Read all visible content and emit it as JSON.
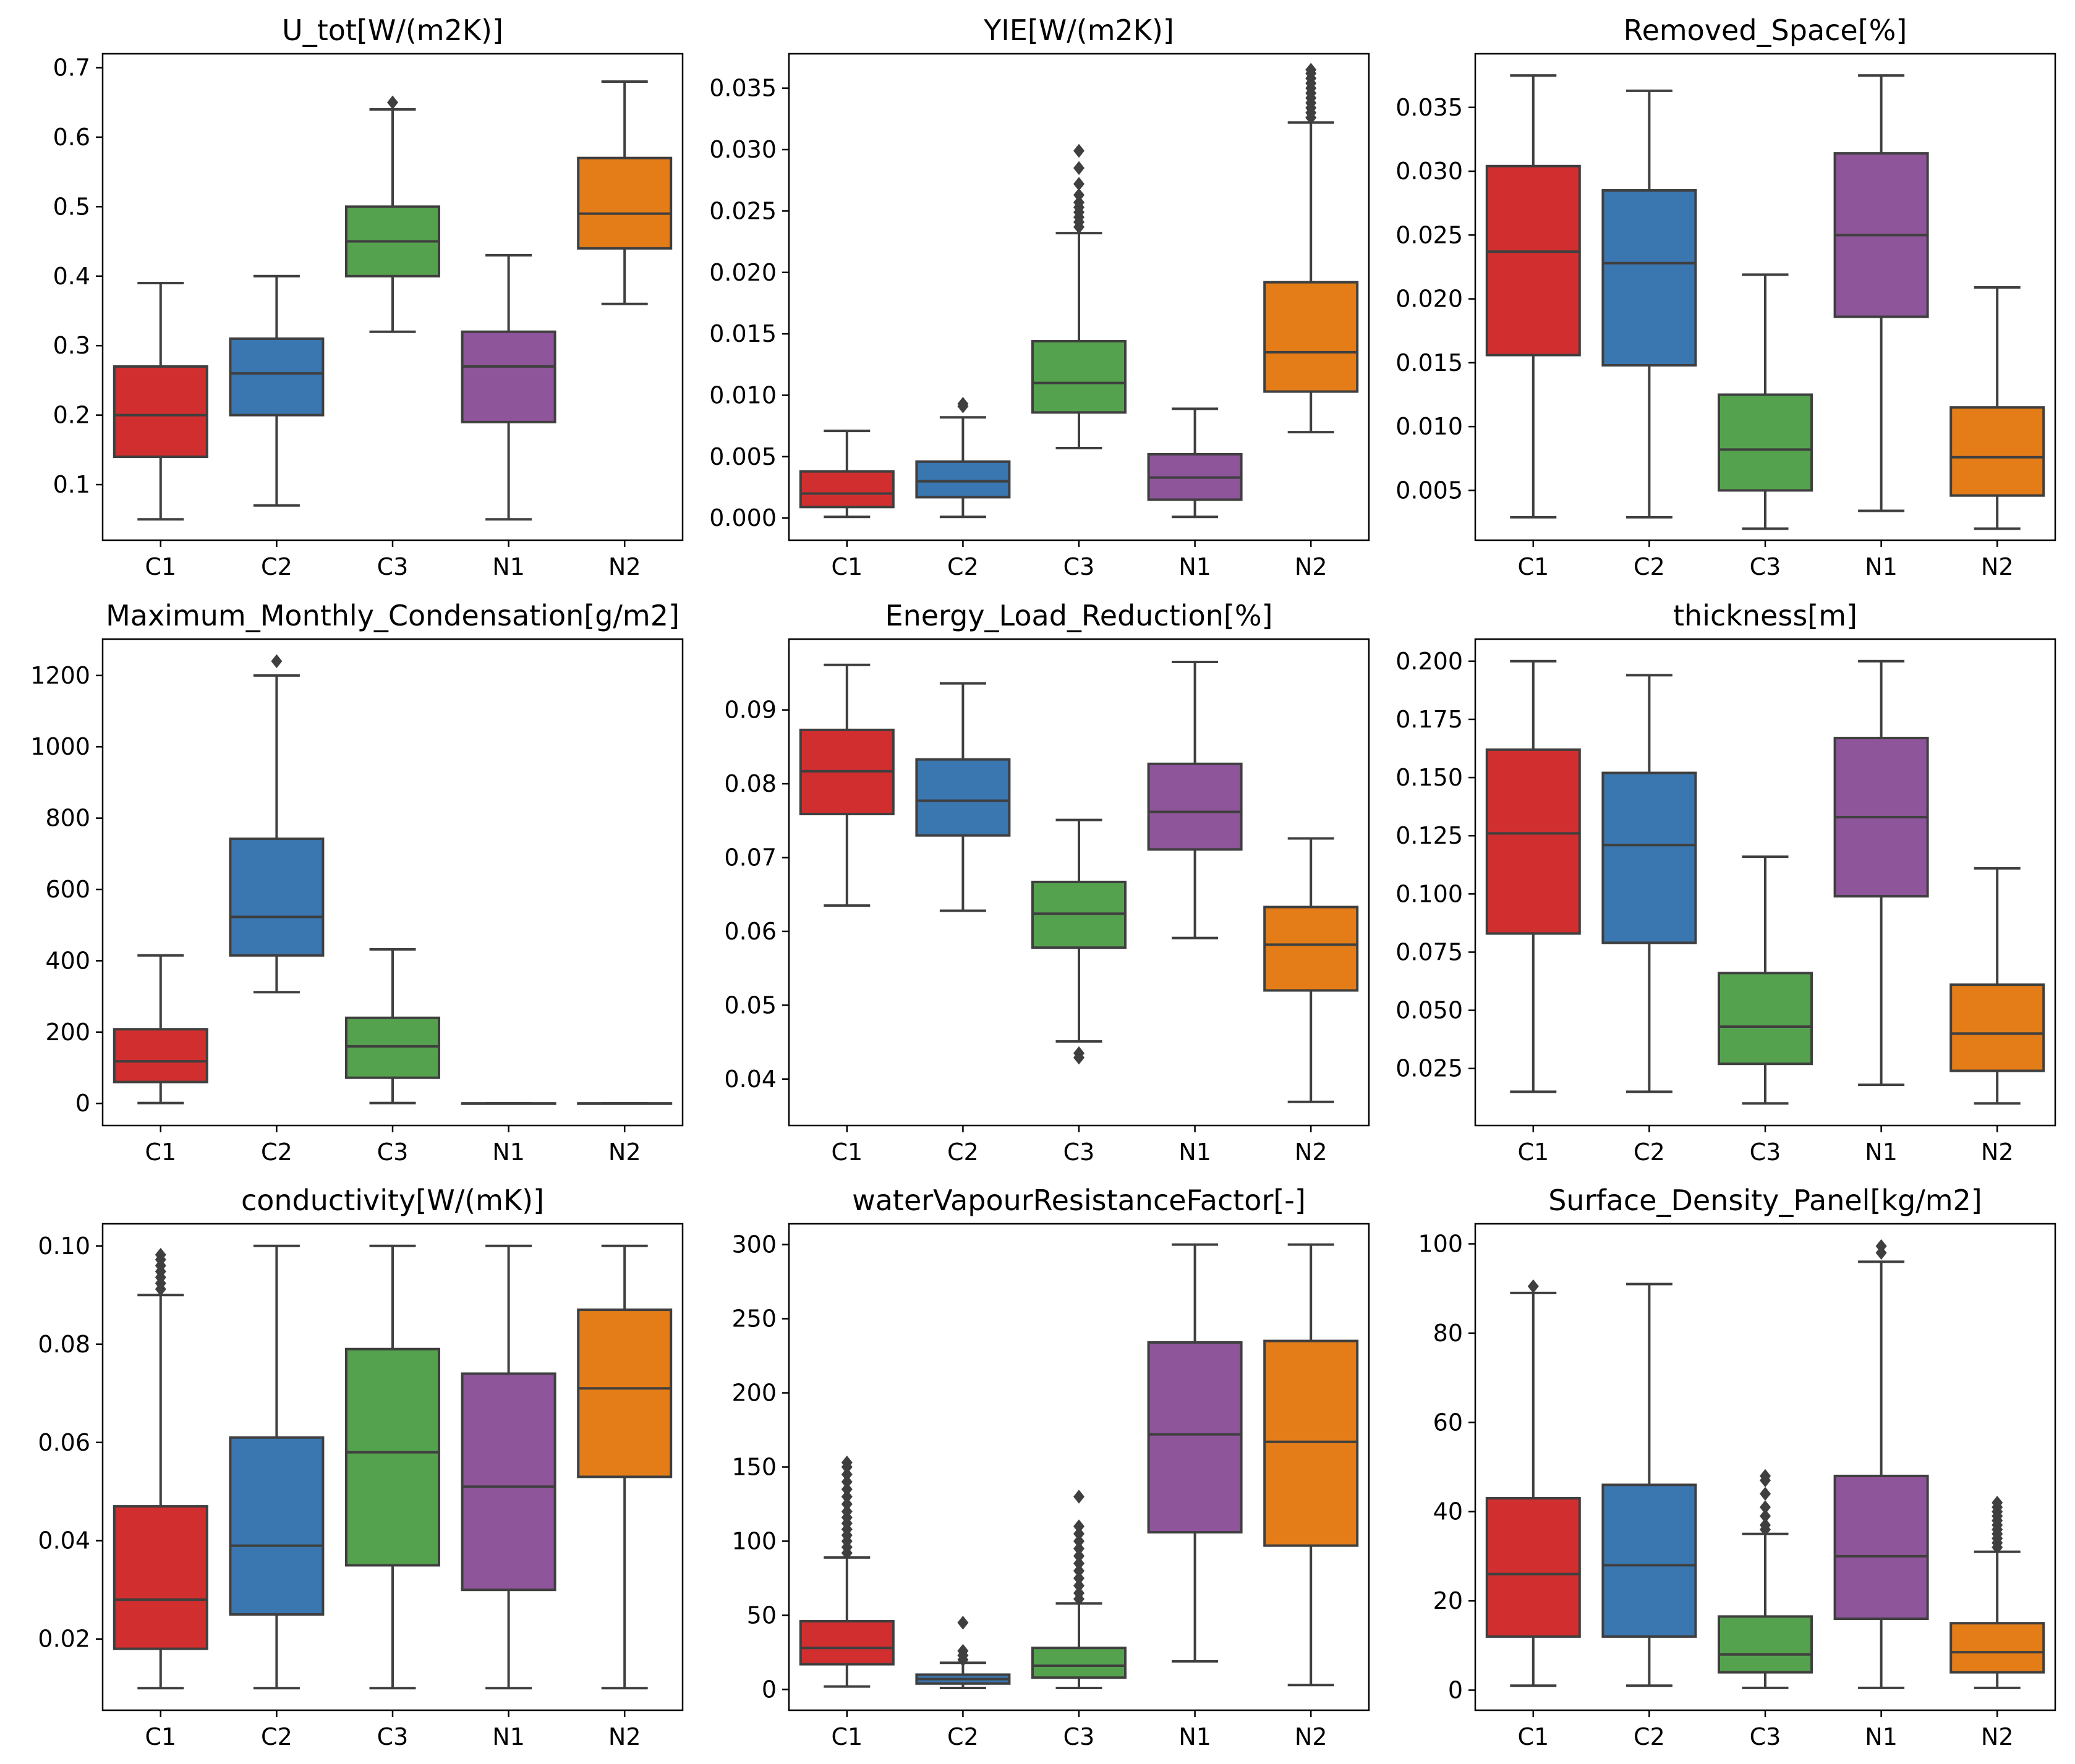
{
  "figure": {
    "type": "box-plot-grid",
    "rows": 3,
    "cols": 3
  },
  "palette": {
    "C1": "#D12F2F",
    "C2": "#3A76AF",
    "C3": "#55A24E",
    "N1": "#8E559A",
    "N2": "#E47D18",
    "line": "#3F3F3F"
  },
  "chart_data": [
    {
      "type": "box",
      "title": "U_tot[W/(m2K)]",
      "categories": [
        "C1",
        "C2",
        "C3",
        "N1",
        "N2"
      ],
      "yrange": [
        0.02,
        0.72
      ],
      "yticks": [
        0.1,
        0.2,
        0.3,
        0.4,
        0.5,
        0.6,
        0.7
      ],
      "ytick_labels": [
        "0.1",
        "0.2",
        "0.3",
        "0.4",
        "0.5",
        "0.6",
        "0.7"
      ],
      "boxes": [
        {
          "wlo": 0.05,
          "q1": 0.14,
          "med": 0.2,
          "q3": 0.27,
          "whi": 0.39,
          "outliers": []
        },
        {
          "wlo": 0.07,
          "q1": 0.2,
          "med": 0.26,
          "q3": 0.31,
          "whi": 0.4,
          "outliers": []
        },
        {
          "wlo": 0.32,
          "q1": 0.4,
          "med": 0.45,
          "q3": 0.5,
          "whi": 0.64,
          "outliers": [
            0.65
          ]
        },
        {
          "wlo": 0.05,
          "q1": 0.19,
          "med": 0.27,
          "q3": 0.32,
          "whi": 0.43,
          "outliers": []
        },
        {
          "wlo": 0.36,
          "q1": 0.44,
          "med": 0.49,
          "q3": 0.57,
          "whi": 0.68,
          "outliers": []
        }
      ]
    },
    {
      "type": "box",
      "title": "YIE[W/(m2K)]",
      "categories": [
        "C1",
        "C2",
        "C3",
        "N1",
        "N2"
      ],
      "yrange": [
        -0.0018,
        0.0378
      ],
      "yticks": [
        0,
        0.005,
        0.01,
        0.015,
        0.02,
        0.025,
        0.03,
        0.035
      ],
      "ytick_labels": [
        "0.000",
        "0.005",
        "0.010",
        "0.015",
        "0.020",
        "0.025",
        "0.030",
        "0.035"
      ],
      "boxes": [
        {
          "wlo": 0.0001,
          "q1": 0.0009,
          "med": 0.002,
          "q3": 0.0038,
          "whi": 0.0071,
          "outliers": []
        },
        {
          "wlo": 0.0001,
          "q1": 0.0017,
          "med": 0.003,
          "q3": 0.0046,
          "whi": 0.0082,
          "outliers": [
            0.0091,
            0.0093
          ]
        },
        {
          "wlo": 0.0057,
          "q1": 0.0086,
          "med": 0.011,
          "q3": 0.0144,
          "whi": 0.0232,
          "outliers": [
            0.0237,
            0.0241,
            0.0245,
            0.0249,
            0.0253,
            0.0257,
            0.0263,
            0.0272,
            0.0285,
            0.0299
          ]
        },
        {
          "wlo": 0.0001,
          "q1": 0.0015,
          "med": 0.0033,
          "q3": 0.0052,
          "whi": 0.0089,
          "outliers": []
        },
        {
          "wlo": 0.007,
          "q1": 0.0103,
          "med": 0.0135,
          "q3": 0.0192,
          "whi": 0.0322,
          "outliers": [
            0.0326,
            0.033,
            0.0334,
            0.0338,
            0.0342,
            0.0346,
            0.035,
            0.0354,
            0.0358,
            0.0362,
            0.0365
          ]
        }
      ]
    },
    {
      "type": "box",
      "title": "Removed_Space[%]",
      "categories": [
        "C1",
        "C2",
        "C3",
        "N1",
        "N2"
      ],
      "yrange": [
        0.0011,
        0.0392
      ],
      "yticks": [
        0.005,
        0.01,
        0.015,
        0.02,
        0.025,
        0.03,
        0.035
      ],
      "ytick_labels": [
        "0.005",
        "0.010",
        "0.015",
        "0.020",
        "0.025",
        "0.030",
        "0.035"
      ],
      "boxes": [
        {
          "wlo": 0.0029,
          "q1": 0.0156,
          "med": 0.0237,
          "q3": 0.0304,
          "whi": 0.0375,
          "outliers": []
        },
        {
          "wlo": 0.0029,
          "q1": 0.0148,
          "med": 0.0228,
          "q3": 0.0285,
          "whi": 0.0363,
          "outliers": []
        },
        {
          "wlo": 0.002,
          "q1": 0.005,
          "med": 0.0082,
          "q3": 0.0125,
          "whi": 0.0219,
          "outliers": []
        },
        {
          "wlo": 0.0034,
          "q1": 0.0186,
          "med": 0.025,
          "q3": 0.0314,
          "whi": 0.0375,
          "outliers": []
        },
        {
          "wlo": 0.002,
          "q1": 0.0046,
          "med": 0.0076,
          "q3": 0.0115,
          "whi": 0.0209,
          "outliers": []
        }
      ]
    },
    {
      "type": "box",
      "title": "Maximum_Monthly_Condensation[g/m2]",
      "categories": [
        "C1",
        "C2",
        "C3",
        "N1",
        "N2"
      ],
      "yrange": [
        -62,
        1302
      ],
      "yticks": [
        0,
        200,
        400,
        600,
        800,
        1000,
        1200
      ],
      "ytick_labels": [
        "0",
        "200",
        "400",
        "600",
        "800",
        "1000",
        "1200"
      ],
      "boxes": [
        {
          "wlo": 1,
          "q1": 60,
          "med": 118,
          "q3": 208,
          "whi": 415,
          "outliers": []
        },
        {
          "wlo": 312,
          "q1": 415,
          "med": 523,
          "q3": 742,
          "whi": 1200,
          "outliers": [
            1240
          ]
        },
        {
          "wlo": 1,
          "q1": 72,
          "med": 160,
          "q3": 240,
          "whi": 432,
          "outliers": []
        },
        {
          "wlo": 0,
          "q1": 0,
          "med": 0,
          "q3": 0,
          "whi": 0,
          "outliers": []
        },
        {
          "wlo": 0,
          "q1": 0,
          "med": 0,
          "q3": 0,
          "whi": 0,
          "outliers": []
        }
      ]
    },
    {
      "type": "box",
      "title": "Energy_Load_Reduction[%]",
      "categories": [
        "C1",
        "C2",
        "C3",
        "N1",
        "N2"
      ],
      "yrange": [
        0.0337,
        0.0996
      ],
      "yticks": [
        0.04,
        0.05,
        0.06,
        0.07,
        0.08,
        0.09
      ],
      "ytick_labels": [
        "0.04",
        "0.05",
        "0.06",
        "0.07",
        "0.08",
        "0.09"
      ],
      "boxes": [
        {
          "wlo": 0.0635,
          "q1": 0.0759,
          "med": 0.0817,
          "q3": 0.0873,
          "whi": 0.0961,
          "outliers": []
        },
        {
          "wlo": 0.0628,
          "q1": 0.073,
          "med": 0.0777,
          "q3": 0.0833,
          "whi": 0.0936,
          "outliers": []
        },
        {
          "wlo": 0.0451,
          "q1": 0.0578,
          "med": 0.0624,
          "q3": 0.0667,
          "whi": 0.0751,
          "outliers": [
            0.0435,
            0.0429
          ]
        },
        {
          "wlo": 0.0591,
          "q1": 0.0711,
          "med": 0.0762,
          "q3": 0.0827,
          "whi": 0.0965,
          "outliers": []
        },
        {
          "wlo": 0.0369,
          "q1": 0.052,
          "med": 0.0582,
          "q3": 0.0633,
          "whi": 0.0726,
          "outliers": []
        }
      ]
    },
    {
      "type": "box",
      "title": "thickness[m]",
      "categories": [
        "C1",
        "C2",
        "C3",
        "N1",
        "N2"
      ],
      "yrange": [
        0.0005,
        0.2095
      ],
      "yticks": [
        0.025,
        0.05,
        0.075,
        0.1,
        0.125,
        0.15,
        0.175,
        0.2
      ],
      "ytick_labels": [
        "0.025",
        "0.050",
        "0.075",
        "0.100",
        "0.125",
        "0.150",
        "0.175",
        "0.200"
      ],
      "boxes": [
        {
          "wlo": 0.015,
          "q1": 0.083,
          "med": 0.126,
          "q3": 0.162,
          "whi": 0.2,
          "outliers": []
        },
        {
          "wlo": 0.015,
          "q1": 0.079,
          "med": 0.121,
          "q3": 0.152,
          "whi": 0.194,
          "outliers": []
        },
        {
          "wlo": 0.01,
          "q1": 0.027,
          "med": 0.043,
          "q3": 0.066,
          "whi": 0.116,
          "outliers": []
        },
        {
          "wlo": 0.018,
          "q1": 0.099,
          "med": 0.133,
          "q3": 0.167,
          "whi": 0.2,
          "outliers": []
        },
        {
          "wlo": 0.01,
          "q1": 0.024,
          "med": 0.04,
          "q3": 0.061,
          "whi": 0.111,
          "outliers": []
        }
      ]
    },
    {
      "type": "box",
      "title": "conductivity[W/(mK)]",
      "categories": [
        "C1",
        "C2",
        "C3",
        "N1",
        "N2"
      ],
      "yrange": [
        0.0055,
        0.1045
      ],
      "yticks": [
        0.02,
        0.04,
        0.06,
        0.08,
        0.1
      ],
      "ytick_labels": [
        "0.02",
        "0.04",
        "0.06",
        "0.08",
        "0.10"
      ],
      "boxes": [
        {
          "wlo": 0.01,
          "q1": 0.018,
          "med": 0.028,
          "q3": 0.047,
          "whi": 0.09,
          "outliers": [
            0.0912,
            0.0924,
            0.0936,
            0.0948,
            0.096,
            0.0972,
            0.0982
          ]
        },
        {
          "wlo": 0.01,
          "q1": 0.025,
          "med": 0.039,
          "q3": 0.061,
          "whi": 0.1,
          "outliers": []
        },
        {
          "wlo": 0.01,
          "q1": 0.035,
          "med": 0.058,
          "q3": 0.079,
          "whi": 0.1,
          "outliers": []
        },
        {
          "wlo": 0.01,
          "q1": 0.03,
          "med": 0.051,
          "q3": 0.074,
          "whi": 0.1,
          "outliers": []
        },
        {
          "wlo": 0.01,
          "q1": 0.053,
          "med": 0.071,
          "q3": 0.087,
          "whi": 0.1,
          "outliers": []
        }
      ]
    },
    {
      "type": "box",
      "title": "waterVapourResistanceFactor[-]",
      "categories": [
        "C1",
        "C2",
        "C3",
        "N1",
        "N2"
      ],
      "yrange": [
        -14,
        314
      ],
      "yticks": [
        0,
        50,
        100,
        150,
        200,
        250,
        300
      ],
      "ytick_labels": [
        "0",
        "50",
        "100",
        "150",
        "200",
        "250",
        "300"
      ],
      "boxes": [
        {
          "wlo": 2,
          "q1": 17,
          "med": 28,
          "q3": 46,
          "whi": 89,
          "outliers": [
            92,
            96,
            100,
            104,
            108,
            112,
            116,
            120,
            125,
            130,
            135,
            140,
            145,
            150,
            153
          ]
        },
        {
          "wlo": 1,
          "q1": 4,
          "med": 7,
          "q3": 10,
          "whi": 18,
          "outliers": [
            20,
            23,
            26,
            45
          ]
        },
        {
          "wlo": 1,
          "q1": 8,
          "med": 16,
          "q3": 28,
          "whi": 58,
          "outliers": [
            61,
            65,
            70,
            75,
            80,
            85,
            90,
            95,
            100,
            105,
            110,
            130
          ]
        },
        {
          "wlo": 19,
          "q1": 106,
          "med": 172,
          "q3": 234,
          "whi": 300,
          "outliers": []
        },
        {
          "wlo": 3,
          "q1": 97,
          "med": 167,
          "q3": 235,
          "whi": 300,
          "outliers": []
        }
      ]
    },
    {
      "type": "box",
      "title": "Surface_Density_Panel[kg/m2]",
      "categories": [
        "C1",
        "C2",
        "C3",
        "N1",
        "N2"
      ],
      "yrange": [
        -4.5,
        104.5
      ],
      "yticks": [
        0,
        20,
        40,
        60,
        80,
        100
      ],
      "ytick_labels": [
        "0",
        "20",
        "40",
        "60",
        "80",
        "100"
      ],
      "boxes": [
        {
          "wlo": 1,
          "q1": 12,
          "med": 26,
          "q3": 43,
          "whi": 89,
          "outliers": [
            90.5
          ]
        },
        {
          "wlo": 1,
          "q1": 12,
          "med": 28,
          "q3": 46,
          "whi": 91,
          "outliers": []
        },
        {
          "wlo": 0.5,
          "q1": 4,
          "med": 8,
          "q3": 16.5,
          "whi": 35,
          "outliers": [
            36,
            37,
            39,
            41,
            44,
            47,
            48
          ]
        },
        {
          "wlo": 0.5,
          "q1": 16,
          "med": 30,
          "q3": 48,
          "whi": 96,
          "outliers": [
            98,
            99.5
          ]
        },
        {
          "wlo": 0.5,
          "q1": 4,
          "med": 8.5,
          "q3": 15,
          "whi": 31,
          "outliers": [
            32,
            33,
            34,
            35,
            36,
            37,
            38,
            39,
            40,
            41,
            42
          ]
        }
      ]
    }
  ]
}
